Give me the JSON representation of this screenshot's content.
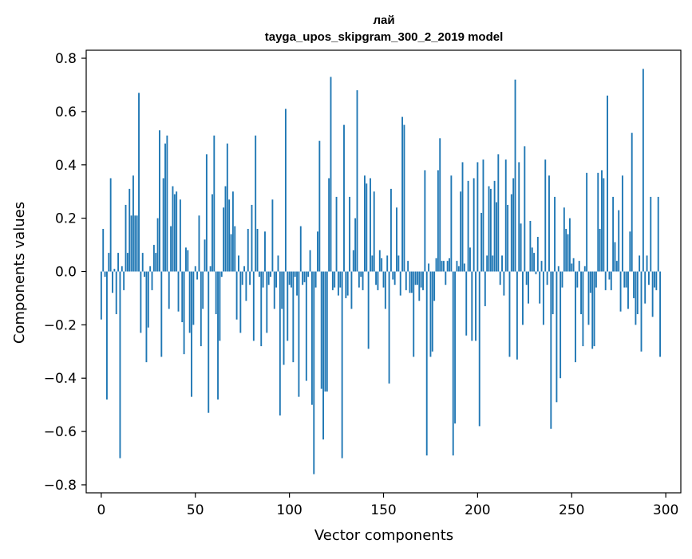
{
  "chart_data": {
    "type": "bar",
    "title": "лай",
    "subtitle": "tayga_upos_skipgram_300_2_2019 model",
    "xlabel": "Vector components",
    "ylabel": "Components values",
    "xlim": [
      -8,
      308
    ],
    "ylim": [
      -0.83,
      0.83
    ],
    "xticks": [
      0,
      50,
      100,
      150,
      200,
      250,
      300
    ],
    "yticks": [
      -0.8,
      -0.6,
      -0.4,
      -0.2,
      0.0,
      0.2,
      0.4,
      0.6,
      0.8
    ],
    "ytick_labels": [
      "−0.8",
      "−0.6",
      "−0.4",
      "−0.2",
      "0.0",
      "0.2",
      "0.4",
      "0.6",
      "0.8"
    ],
    "bar_color": "#1f77b4",
    "grid": false,
    "values": [
      -0.18,
      0.16,
      -0.02,
      -0.48,
      0.07,
      0.35,
      -0.08,
      0.01,
      -0.16,
      0.07,
      -0.7,
      0.02,
      -0.07,
      0.25,
      0.07,
      0.31,
      0.21,
      0.36,
      0.21,
      0.21,
      0.67,
      -0.23,
      0.07,
      -0.02,
      -0.34,
      -0.21,
      0.02,
      -0.07,
      0.1,
      0.07,
      0.2,
      0.53,
      -0.32,
      0.35,
      0.48,
      0.51,
      -0.14,
      0.17,
      0.32,
      0.29,
      0.3,
      -0.15,
      0.27,
      -0.19,
      -0.31,
      0.09,
      0.08,
      -0.23,
      -0.47,
      -0.2,
      0.02,
      -0.03,
      0.21,
      -0.28,
      -0.14,
      0.12,
      0.44,
      -0.53,
      0.02,
      0.29,
      0.51,
      -0.16,
      -0.48,
      -0.26,
      -0.02,
      0.24,
      0.32,
      0.48,
      0.27,
      0.14,
      0.3,
      0.17,
      -0.18,
      0.06,
      -0.23,
      -0.05,
      0.02,
      -0.11,
      0.16,
      -0.05,
      0.25,
      -0.26,
      0.51,
      0.16,
      -0.02,
      -0.28,
      -0.06,
      0.15,
      -0.23,
      -0.05,
      -0.02,
      0.27,
      -0.14,
      -0.06,
      0.06,
      -0.54,
      -0.14,
      -0.35,
      0.61,
      -0.26,
      -0.05,
      -0.06,
      -0.34,
      -0.02,
      -0.09,
      -0.47,
      0.17,
      -0.05,
      -0.04,
      -0.41,
      -0.02,
      0.08,
      -0.5,
      -0.76,
      -0.06,
      0.15,
      0.49,
      -0.44,
      -0.63,
      -0.45,
      -0.45,
      0.35,
      0.73,
      -0.07,
      -0.06,
      0.28,
      -0.09,
      -0.06,
      -0.7,
      0.55,
      -0.1,
      -0.09,
      0.28,
      -0.14,
      0.08,
      0.2,
      0.68,
      -0.06,
      -0.02,
      -0.07,
      0.36,
      0.33,
      -0.29,
      0.35,
      0.06,
      0.3,
      -0.05,
      -0.07,
      0.08,
      0.05,
      -0.06,
      -0.14,
      0.06,
      -0.42,
      0.31,
      -0.03,
      -0.05,
      0.24,
      0.06,
      -0.09,
      0.58,
      0.55,
      -0.07,
      0.04,
      -0.08,
      -0.08,
      -0.32,
      -0.05,
      -0.05,
      -0.11,
      -0.06,
      -0.07,
      0.38,
      -0.69,
      0.03,
      -0.32,
      -0.3,
      -0.11,
      0.05,
      0.38,
      0.5,
      0.04,
      0.04,
      -0.05,
      0.04,
      0.05,
      0.36,
      -0.69,
      -0.57,
      0.04,
      0.02,
      0.3,
      0.41,
      0.03,
      -0.24,
      0.34,
      0.09,
      -0.26,
      0.35,
      -0.26,
      0.41,
      -0.58,
      0.22,
      0.42,
      -0.13,
      0.06,
      0.32,
      0.31,
      0.06,
      0.34,
      0.26,
      0.44,
      -0.05,
      0.06,
      -0.09,
      0.42,
      0.25,
      -0.32,
      0.29,
      0.35,
      0.72,
      -0.33,
      0.41,
      0.18,
      -0.2,
      0.47,
      -0.05,
      -0.12,
      0.19,
      0.09,
      0.07,
      -0.01,
      0.13,
      -0.12,
      0.04,
      -0.2,
      0.42,
      -0.05,
      0.36,
      -0.59,
      -0.16,
      0.28,
      -0.49,
      0.02,
      -0.4,
      -0.06,
      0.24,
      0.16,
      0.14,
      0.2,
      0.03,
      0.05,
      -0.34,
      -0.06,
      0.04,
      -0.16,
      -0.28,
      0.02,
      0.37,
      -0.2,
      -0.08,
      -0.29,
      -0.28,
      -0.06,
      0.37,
      0.16,
      0.38,
      0.35,
      -0.07,
      0.66,
      -0.03,
      -0.07,
      0.28,
      0.11,
      0.04,
      0.23,
      -0.15,
      0.36,
      -0.06,
      -0.06,
      -0.14,
      0.15,
      0.52,
      -0.1,
      -0.2,
      -0.16,
      0.06,
      -0.3,
      0.76,
      -0.12,
      0.06,
      -0.05,
      0.28,
      -0.17,
      -0.06,
      -0.07,
      0.28,
      -0.32
    ]
  }
}
